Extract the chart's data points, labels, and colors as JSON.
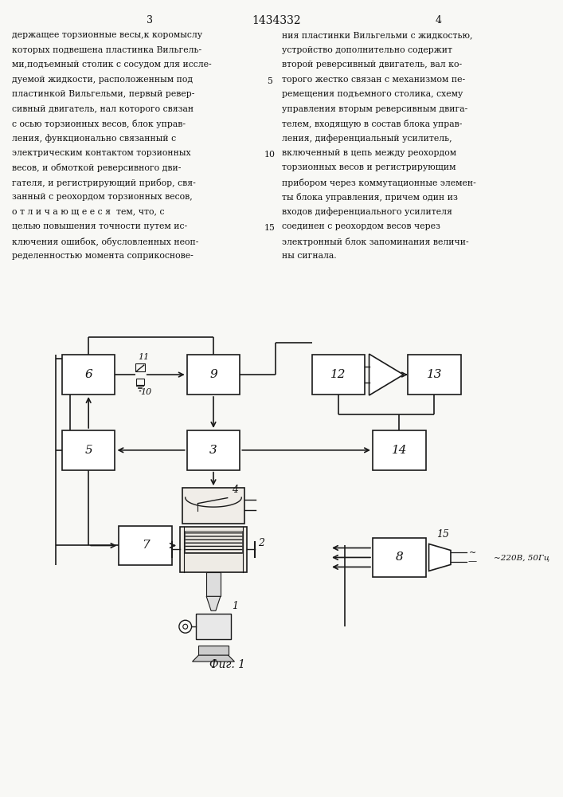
{
  "bg_color": "#f8f8f5",
  "line_color": "#1a1a1a",
  "text_color": "#111111",
  "fig_label": "Фиг. 1",
  "power_label": "~220В, 50Гц",
  "left_col": [
    "держащее торзионные весы,к коромыслу",
    "которых подвешена пластинка Вильгель-",
    "ми,подъемный столик с сосудом для иссле-",
    "дуемой жидкости, расположенным под",
    "пластинкой Вильгельми, первый ревер-",
    "сивный двигатель, нал которого связан",
    "с осью торзионных весов, блок управ-",
    "ления, функционально связанный с",
    "электрическим контактом торзионных",
    "весов, и обмоткой реверсивного дви-",
    "гателя, и регистрирующий прибор, свя-",
    "занный с реохордом торзионных весов,",
    "о т л и ч а ю щ е е с я  тем, что, с",
    "целью повышения точности путем ис-",
    "ключения ошибок, обусловленных неоп-",
    "ределенностью момента соприкоснове-"
  ],
  "right_col": [
    "ния пластинки Вильгельми с жидкостью,",
    "устройство дополнительно содержит",
    "второй реверсивный двигатель, вал ко-",
    "торого жестко связан с механизмом пе-",
    "ремещения подъемного столика, схему",
    "управления вторым реверсивным двига-",
    "телем, входящую в состав блока управ-",
    "ления, диференциальный усилитель,",
    "включенный в цепь между реохордом",
    "торзионных весов и регистрирующим",
    "прибором через коммутационные элемен-",
    "ты блока управления, причем один из",
    "входов диференциального усилителя",
    "соединен с реохордом весов через",
    "электронный блок запоминания величи-",
    "ны сигнала."
  ]
}
